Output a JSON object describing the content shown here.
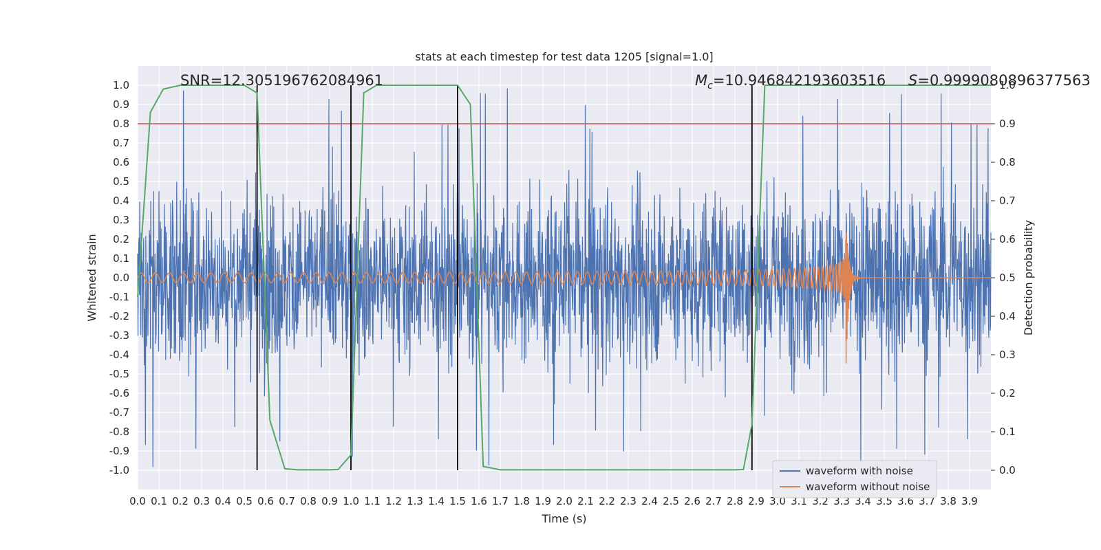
{
  "chart_data": {
    "type": "line",
    "title": "stats at each timestep for test data 1205 [signal=1.0]",
    "xlabel": "Time (s)",
    "ylabel": "Whitened strain",
    "ylabel_right": "Detection probability",
    "xlim": [
      0.0,
      4.0
    ],
    "ylim": [
      -1.1,
      1.1
    ],
    "ylim_right": [
      -0.05,
      1.05
    ],
    "x_ticks": [
      "0.0",
      "0.1",
      "0.2",
      "0.3",
      "0.4",
      "0.5",
      "0.6",
      "0.7",
      "0.8",
      "0.9",
      "1.0",
      "1.1",
      "1.2",
      "1.3",
      "1.4",
      "1.5",
      "1.6",
      "1.7",
      "1.8",
      "1.9",
      "2.0",
      "2.1",
      "2.2",
      "2.3",
      "2.4",
      "2.5",
      "2.6",
      "2.7",
      "2.8",
      "2.9",
      "3.0",
      "3.1",
      "3.2",
      "3.3",
      "3.4",
      "3.5",
      "3.6",
      "3.7",
      "3.8",
      "3.9"
    ],
    "y_ticks": [
      "1.0",
      "0.9",
      "0.8",
      "0.7",
      "0.6",
      "0.5",
      "0.4",
      "0.3",
      "0.2",
      "0.1",
      "0.0",
      "-0.1",
      "-0.2",
      "-0.3",
      "-0.4",
      "-0.5",
      "-0.6",
      "-0.7",
      "-0.8",
      "-0.9",
      "-1.0"
    ],
    "y_ticks_right": [
      "1.0",
      "0.9",
      "0.8",
      "0.7",
      "0.6",
      "0.5",
      "0.4",
      "0.3",
      "0.2",
      "0.1",
      "0.0"
    ],
    "annotations": {
      "snr": "SNR=12.305196762084961",
      "mc_symbol": "M",
      "mc_sub": "c",
      "mc_value": "=10.946842193603516",
      "s_symbol": "S",
      "s_value": "=0.9999080896377563"
    },
    "threshold": {
      "value": 0.9,
      "axis": "right",
      "color": "#c44e52"
    },
    "vlines": [
      0.56,
      1.0,
      1.5,
      2.88
    ],
    "grid": true,
    "legend_position": "lower-right",
    "series": [
      {
        "name": "waveform with noise",
        "color": "#4c72b0",
        "axis": "left",
        "description": "whitened noisy strain, roughly within ±1.0 with spikes to ±1.0"
      },
      {
        "name": "waveform without noise",
        "color": "#dd8452",
        "axis": "left",
        "chirp": {
          "start_amp": 0.025,
          "peak_amp": 0.5,
          "merger_time": 3.32,
          "ringdown_end": 3.4
        }
      },
      {
        "color": "#55a868",
        "axis": "right",
        "x": [
          0.0,
          0.06,
          0.12,
          0.2,
          0.3,
          0.4,
          0.5,
          0.56,
          0.62,
          0.69,
          0.75,
          0.9,
          0.94,
          1.0,
          1.06,
          1.12,
          1.2,
          1.3,
          1.4,
          1.5,
          1.56,
          1.62,
          1.7,
          1.9,
          2.2,
          2.5,
          2.8,
          2.84,
          2.88,
          2.94,
          3.0,
          3.5,
          4.0
        ],
        "y": [
          0.45,
          0.93,
          0.99,
          1.0,
          1.0,
          1.0,
          1.0,
          0.98,
          0.13,
          0.004,
          0.001,
          0.001,
          0.002,
          0.04,
          0.98,
          1.0,
          1.0,
          1.0,
          1.0,
          1.0,
          0.95,
          0.01,
          0.001,
          0.001,
          0.001,
          0.001,
          0.001,
          0.002,
          0.12,
          1.0,
          1.0,
          1.0,
          1.0
        ]
      }
    ]
  }
}
